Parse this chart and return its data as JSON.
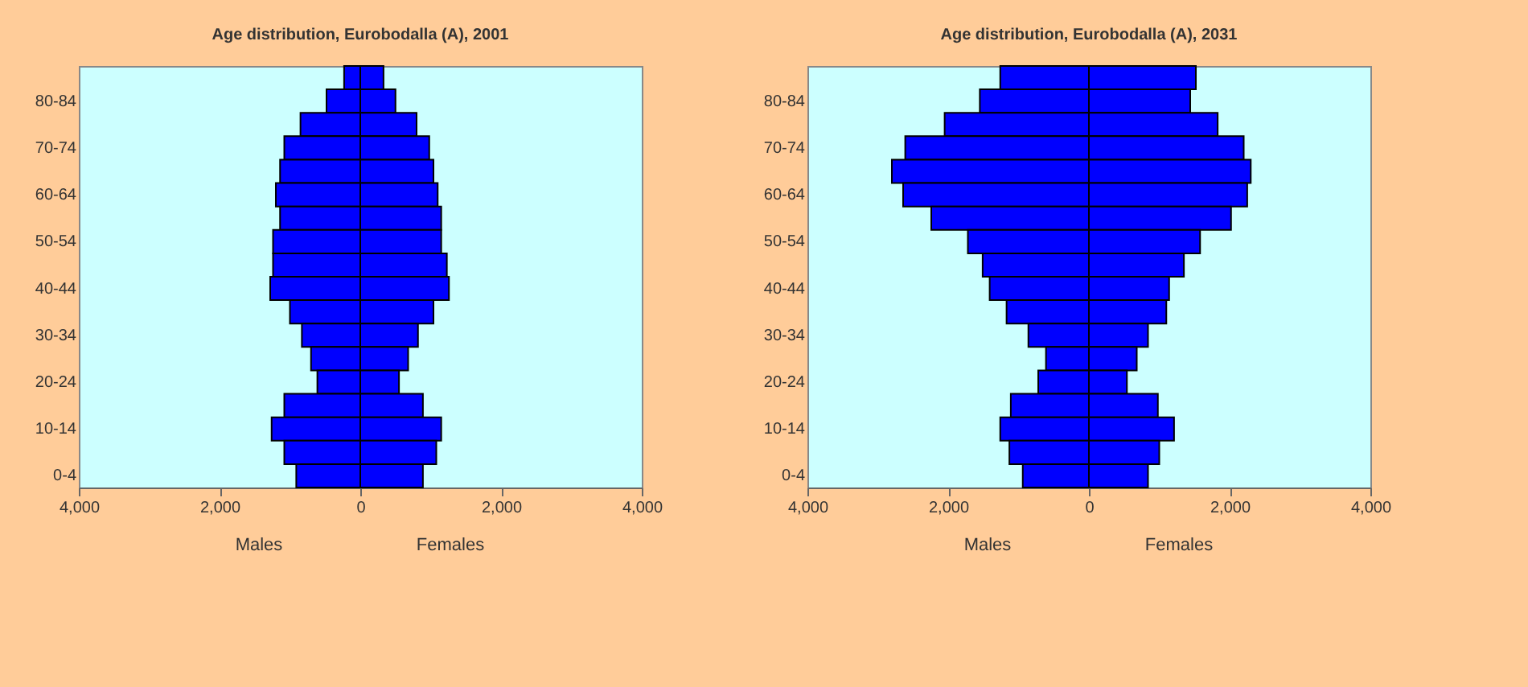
{
  "chart_data": [
    {
      "type": "bar",
      "orientation": "horizontal",
      "title": "Age distribution, Eurobodalla (A), 2001",
      "categories": [
        null,
        "80-84",
        null,
        "70-74",
        null,
        "60-64",
        null,
        "50-54",
        null,
        "40-44",
        null,
        "30-34",
        null,
        "20-24",
        null,
        "10-14",
        null,
        "0-4"
      ],
      "series": [
        {
          "color": "#0000ff",
          "values": [
            -230,
            -480,
            -850,
            -1080,
            -1140,
            -1200,
            -1140,
            -1240,
            -1240,
            -1280,
            -1000,
            -830,
            -700,
            -610,
            -1080,
            -1260,
            -1080,
            -910
          ]
        },
        {
          "color": "#0000ff",
          "values": [
            330,
            500,
            800,
            980,
            1040,
            1100,
            1150,
            1150,
            1230,
            1260,
            1040,
            820,
            680,
            550,
            890,
            1150,
            1080,
            890
          ]
        }
      ],
      "xlim": [
        -4000,
        4000
      ],
      "xticks": [
        {
          "value": -4000,
          "label": "4,000"
        },
        {
          "value": -2000,
          "label": "2,000"
        },
        0,
        {
          "value": 2000,
          "label": "2,000"
        },
        {
          "value": 4000,
          "label": "4,000"
        }
      ],
      "stacked": true,
      "annotations": [
        "Males",
        "Females"
      ],
      "grid": false
    },
    {
      "type": "bar",
      "orientation": "horizontal",
      "title": "Age distribution, Eurobodalla (A), 2031",
      "categories": [
        null,
        "80-84",
        null,
        "70-74",
        null,
        "60-64",
        null,
        "50-54",
        null,
        "40-44",
        null,
        "30-34",
        null,
        "20-24",
        null,
        "10-14",
        null,
        "0-4"
      ],
      "series": [
        {
          "color": "#0000ff",
          "values": [
            -1260,
            -1550,
            -2050,
            -2610,
            -2800,
            -2640,
            -2240,
            -1720,
            -1510,
            -1410,
            -1170,
            -860,
            -610,
            -720,
            -1110,
            -1260,
            -1130,
            -940
          ]
        },
        {
          "color": "#0000ff",
          "values": [
            1520,
            1440,
            1830,
            2200,
            2300,
            2250,
            2020,
            1580,
            1350,
            1140,
            1100,
            840,
            680,
            540,
            980,
            1210,
            1000,
            840
          ]
        }
      ],
      "xlim": [
        -4000,
        4000
      ],
      "xticks": [
        {
          "value": -4000,
          "label": "4,000"
        },
        {
          "value": -2000,
          "label": "2,000"
        },
        0,
        {
          "value": 2000,
          "label": "2,000"
        },
        {
          "value": 4000,
          "label": "4,000"
        }
      ],
      "stacked": true,
      "annotations": [
        "Males",
        "Females"
      ],
      "grid": false
    }
  ]
}
